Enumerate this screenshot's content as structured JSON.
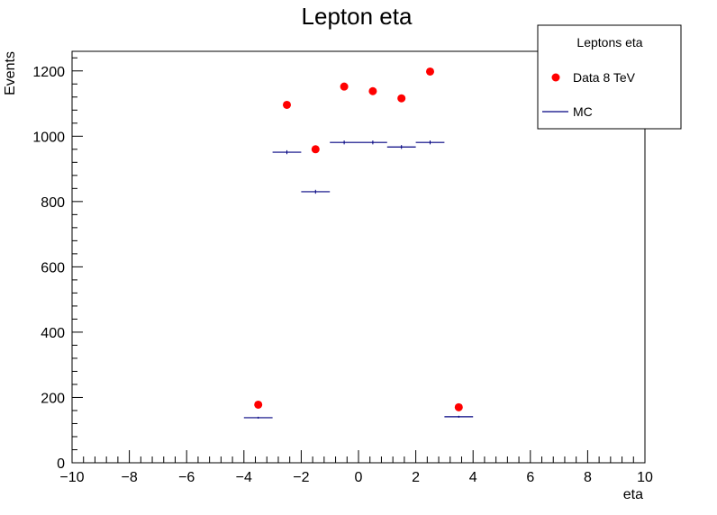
{
  "chart_data": {
    "type": "scatter",
    "title": "Lepton eta",
    "xlabel": "eta",
    "ylabel": "Events",
    "xlim": [
      -10,
      10
    ],
    "ylim": [
      0,
      1260
    ],
    "x_ticks": [
      -10,
      -8,
      -6,
      -4,
      -2,
      0,
      2,
      4,
      6,
      8,
      10
    ],
    "x_tick_labels": [
      "−10",
      "−8",
      "−6",
      "−4",
      "−2",
      "0",
      "2",
      "4",
      "6",
      "8",
      "10"
    ],
    "y_ticks": [
      0,
      200,
      400,
      600,
      800,
      1000,
      1200
    ],
    "y_tick_labels": [
      "0",
      "200",
      "400",
      "600",
      "800",
      "1000",
      "1200"
    ],
    "grid": false,
    "legend": {
      "title": "Leptons eta",
      "placement": "top-right",
      "entries": [
        "Data 8 TeV",
        "MC"
      ]
    },
    "series": [
      {
        "name": "Data 8 TeV",
        "style": "markers",
        "color": "#ff0000",
        "x": [
          -3.5,
          -2.5,
          -1.5,
          -0.5,
          0.5,
          1.5,
          2.5,
          3.5
        ],
        "y": [
          178,
          1096,
          960,
          1152,
          1138,
          1116,
          1198,
          170
        ]
      },
      {
        "name": "MC",
        "style": "histogram-errorbars",
        "color": "#000080",
        "bin_width": 1,
        "x": [
          -3.5,
          -2.5,
          -1.5,
          -0.5,
          0.5,
          1.5,
          2.5,
          3.5
        ],
        "y": [
          138,
          951,
          830,
          981,
          981,
          967,
          981,
          141
        ],
        "err": [
          3,
          6,
          6,
          6,
          6,
          6,
          6,
          3
        ]
      }
    ]
  }
}
